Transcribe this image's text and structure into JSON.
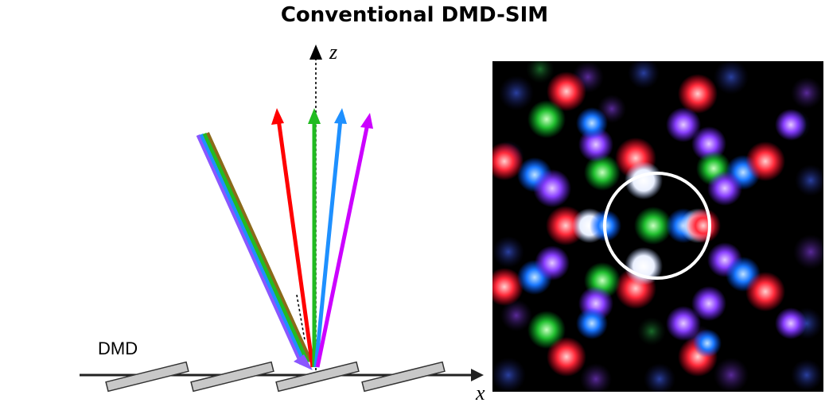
{
  "title": "Conventional DMD-SIM",
  "labels": {
    "dmd": "DMD",
    "x_axis": "x",
    "z_axis": "z"
  },
  "colors": {
    "red": "#ff0000",
    "green": "#22bb22",
    "blue": "#1e90ff",
    "magenta": "#cc00ff",
    "mirror_fill": "#c8c8c8",
    "circle": "#ffffff"
  },
  "icons": {
    "incident_beam": "multicolor-incident-beam",
    "diffracted_beams": [
      "red-arrow",
      "green-arrow",
      "blue-arrow",
      "magenta-arrow"
    ],
    "mirrors": "tilted-micromirror",
    "pattern": "diffraction-spot-pattern",
    "highlight": "white-ring"
  }
}
